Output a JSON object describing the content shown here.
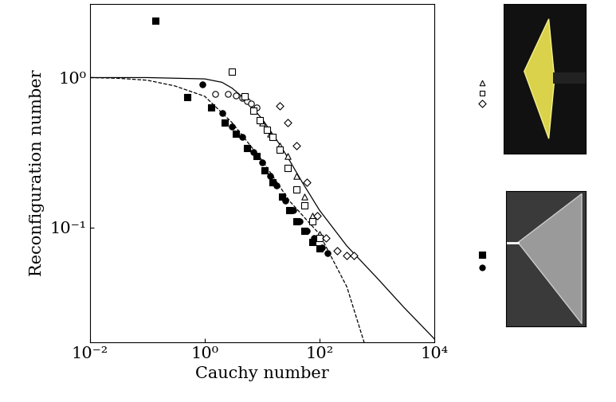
{
  "chart_data": {
    "type": "scatter",
    "x_label": "Cauchy number",
    "y_label": "Reconfiguration number",
    "log": true,
    "xlim": [
      0.01,
      10000
    ],
    "ylim": [
      0.017,
      3.1
    ],
    "xticks": [
      {
        "value": 0.01,
        "label": "10⁻²"
      },
      {
        "value": 1,
        "label": "10⁰"
      },
      {
        "value": 100,
        "label": "10²"
      },
      {
        "value": 10000,
        "label": "10⁴"
      }
    ],
    "yticks": [
      {
        "value": 0.1,
        "label": "10⁻¹"
      },
      {
        "value": 1,
        "label": "10⁰"
      }
    ],
    "series": [
      {
        "type": "line",
        "color": "black",
        "line_style": "solid",
        "x": [
          0.01,
          0.1,
          1,
          2,
          3,
          5,
          10,
          20,
          30,
          50,
          100,
          300,
          1000,
          3000,
          10000
        ],
        "values": [
          1,
          1,
          0.98,
          0.93,
          0.85,
          0.72,
          0.53,
          0.36,
          0.28,
          0.2,
          0.13,
          0.075,
          0.046,
          0.029,
          0.018
        ]
      },
      {
        "type": "line",
        "color": "black",
        "line_style": "dashed",
        "x": [
          0.01,
          0.03,
          0.1,
          0.3,
          1,
          3,
          10,
          30,
          100,
          300,
          600
        ],
        "values": [
          1,
          0.99,
          0.96,
          0.88,
          0.75,
          0.5,
          0.28,
          0.15,
          0.09,
          0.04,
          0.017
        ]
      },
      {
        "type": "scatter",
        "marker": "square",
        "color": "black",
        "x": [
          0.14,
          0.5,
          1.3,
          2.2,
          3.5,
          5.5,
          8,
          11,
          15,
          22,
          30,
          40,
          55,
          75,
          100
        ],
        "values": [
          2.4,
          0.74,
          0.63,
          0.5,
          0.42,
          0.34,
          0.3,
          0.24,
          0.2,
          0.16,
          0.13,
          0.11,
          0.095,
          0.08,
          0.072
        ]
      },
      {
        "type": "scatter",
        "marker": "circle",
        "color": "black",
        "x": [
          0.9,
          2,
          3,
          4.5,
          7,
          10,
          14,
          18,
          25,
          35,
          45,
          60,
          80,
          110,
          140
        ],
        "values": [
          0.9,
          0.58,
          0.47,
          0.4,
          0.32,
          0.27,
          0.22,
          0.19,
          0.15,
          0.13,
          0.11,
          0.095,
          0.085,
          0.073,
          0.067
        ]
      },
      {
        "type": "scatter",
        "marker": "circle",
        "color": "white",
        "x": [
          1.5,
          2.5,
          3.5,
          4.5,
          5.5,
          6.5,
          8
        ],
        "values": [
          0.78,
          0.78,
          0.76,
          0.73,
          0.7,
          0.67,
          0.63
        ]
      },
      {
        "type": "scatter",
        "marker": "triangle",
        "color": "white",
        "x": [
          10,
          14,
          20,
          28,
          40,
          55,
          75,
          100
        ],
        "values": [
          0.5,
          0.42,
          0.35,
          0.3,
          0.22,
          0.16,
          0.12,
          0.09
        ]
      },
      {
        "type": "scatter",
        "marker": "square",
        "color": "white",
        "x": [
          3,
          5,
          7,
          9,
          12,
          15,
          20,
          28,
          40,
          55,
          75,
          100
        ],
        "values": [
          1.1,
          0.75,
          0.6,
          0.52,
          0.45,
          0.4,
          0.33,
          0.25,
          0.18,
          0.14,
          0.11,
          0.085
        ]
      },
      {
        "type": "scatter",
        "marker": "diamond",
        "color": "white",
        "x": [
          20,
          28,
          40,
          60,
          90,
          130,
          200,
          300,
          400
        ],
        "values": [
          0.65,
          0.5,
          0.35,
          0.2,
          0.12,
          0.085,
          0.07,
          0.065,
          0.065
        ]
      }
    ]
  }
}
